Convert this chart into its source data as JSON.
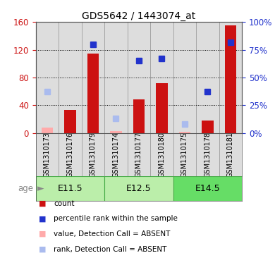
{
  "title": "GDS5642 / 1443074_at",
  "samples": [
    "GSM1310173",
    "GSM1310176",
    "GSM1310179",
    "GSM1310174",
    "GSM1310177",
    "GSM1310180",
    "GSM1310175",
    "GSM1310178",
    "GSM1310181"
  ],
  "age_groups": [
    {
      "label": "E11.5",
      "start": 0,
      "end": 3
    },
    {
      "label": "E12.5",
      "start": 3,
      "end": 6
    },
    {
      "label": "E14.5",
      "start": 6,
      "end": 9
    }
  ],
  "count_values": [
    null,
    33,
    115,
    null,
    48,
    72,
    null,
    18,
    155
  ],
  "rank_values": [
    null,
    null,
    80,
    null,
    65,
    67,
    null,
    37,
    82
  ],
  "absent_count": [
    8,
    null,
    null,
    3,
    null,
    null,
    2,
    null,
    null
  ],
  "absent_rank": [
    37,
    null,
    null,
    13,
    null,
    null,
    8,
    null,
    null
  ],
  "ylim_left": [
    0,
    160
  ],
  "ylim_right": [
    0,
    100
  ],
  "yticks_left": [
    0,
    40,
    80,
    120,
    160
  ],
  "yticks_right": [
    0,
    25,
    50,
    75,
    100
  ],
  "yticklabels_left": [
    "0",
    "40",
    "80",
    "120",
    "160"
  ],
  "yticklabels_right": [
    "0%",
    "25%",
    "50%",
    "75%",
    "100%"
  ],
  "bar_color": "#CC1111",
  "rank_color": "#2233CC",
  "absent_bar_color": "#FFAAAA",
  "absent_rank_color": "#AABBEE",
  "grid_color": "#000000",
  "bg_color": "#FFFFFF",
  "panel_bg": "#DDDDDD",
  "age_bg_light": "#BBEEAA",
  "age_bg_dark": "#66DD66",
  "age_border": "#44AA44",
  "left_tick_color": "#CC1111",
  "right_tick_color": "#2233CC",
  "legend_items": [
    {
      "color": "#CC1111",
      "label": "count"
    },
    {
      "color": "#2233CC",
      "label": "percentile rank within the sample"
    },
    {
      "color": "#FFAAAA",
      "label": "value, Detection Call = ABSENT"
    },
    {
      "color": "#AABBEE",
      "label": "rank, Detection Call = ABSENT"
    }
  ]
}
